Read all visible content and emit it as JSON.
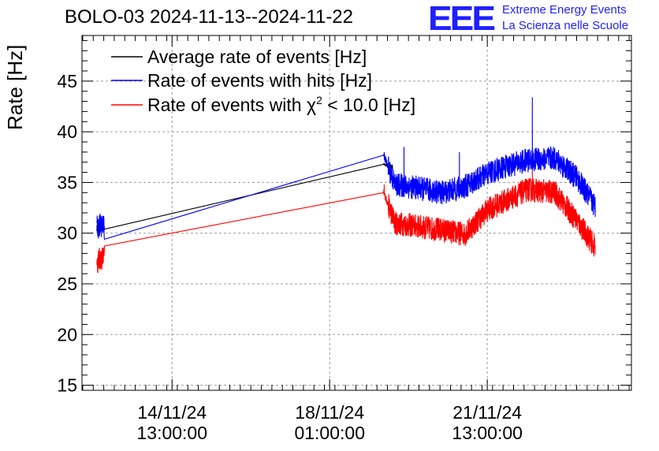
{
  "header": {
    "title": "BOLO-03 2024-11-13--2024-11-22",
    "logo_text": "EEE",
    "logo_line1": "Extreme Energy Events",
    "logo_line2": "La Scienza nelle Scuole"
  },
  "chart_data": {
    "type": "line",
    "title": "BOLO-03 2024-11-13--2024-11-22",
    "xlabel": "",
    "ylabel": "Rate [Hz]",
    "ylim": [
      14.5,
      49.5
    ],
    "xlim_days": [
      -2.0,
      10.2
    ],
    "grid": true,
    "yticks": [
      15,
      20,
      25,
      30,
      35,
      40,
      45
    ],
    "ytick_labels": [
      "15",
      "20",
      "25",
      "30",
      "35",
      "40",
      "45"
    ],
    "xtick_days": [
      0,
      3.5,
      7.0
    ],
    "xtick_labels": [
      {
        "date": "14/11/24",
        "time": "13:00:00"
      },
      {
        "date": "18/11/24",
        "time": "01:00:00"
      },
      {
        "date": "21/11/24",
        "time": "13:00:00"
      }
    ],
    "legend": [
      {
        "label": "Average rate of events [Hz]",
        "color": "#000000"
      },
      {
        "label": "Rate of events with hits [Hz]",
        "color": "#0000ff"
      },
      {
        "label_prefix": "Rate of events with ",
        "symbol": "χ",
        "superscript": "2",
        "label_suffix": " < 10.0 [Hz]",
        "color": "#ff0000"
      }
    ],
    "series": [
      {
        "name": "Average rate of events [Hz]",
        "color": "#000000",
        "x": [
          -1.67,
          -1.6,
          -1.5,
          4.7,
          4.85,
          4.9
        ],
        "values": [
          30.5,
          30.5,
          30.6,
          36.8,
          36.5,
          36.6
        ],
        "noise": 0.4
      },
      {
        "name": "Rate of events with hits [Hz]",
        "color": "#0000ff",
        "x": [
          -1.67,
          -1.6,
          -1.5,
          4.7,
          4.95,
          5.4,
          6.0,
          6.5,
          7.0,
          7.5,
          7.9,
          8.5,
          9.0,
          9.4
        ],
        "values": [
          30.5,
          30.8,
          30.6,
          37.7,
          34.8,
          34.5,
          34.0,
          34.6,
          35.9,
          36.7,
          37.2,
          37.4,
          35.4,
          32.6
        ],
        "noise": 1.2,
        "spikes": [
          {
            "x": 4.71,
            "y": 38.0
          },
          {
            "x": 5.15,
            "y": 38.5
          },
          {
            "x": 6.38,
            "y": 38.0
          },
          {
            "x": 8.0,
            "y": 43.4
          }
        ]
      },
      {
        "name": "Rate of events with χ2 < 10.0 [Hz]",
        "color": "#ff0000",
        "x": [
          -1.67,
          -1.6,
          -1.5,
          4.7,
          4.95,
          5.4,
          6.0,
          6.5,
          7.0,
          7.5,
          7.9,
          8.5,
          9.0,
          9.4
        ],
        "values": [
          27.0,
          27.5,
          27.7,
          34.0,
          31.0,
          30.7,
          30.3,
          29.9,
          32.3,
          33.4,
          34.3,
          34.0,
          31.2,
          28.6
        ],
        "noise": 1.2,
        "spikes": [
          {
            "x": 4.71,
            "y": 34.8
          },
          {
            "x": 8.0,
            "y": 36.2
          }
        ]
      }
    ]
  }
}
